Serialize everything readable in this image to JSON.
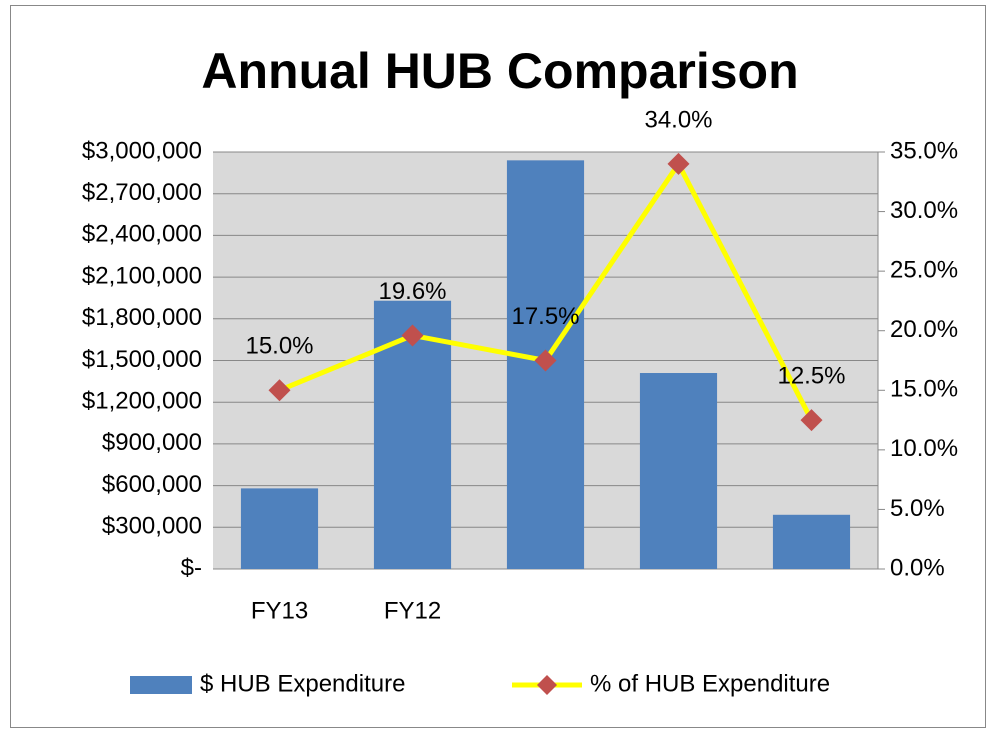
{
  "chart_data": {
    "type": "bar",
    "title": "Annual HUB  Comparison",
    "categories": [
      "FY13",
      "FY12",
      null,
      null,
      null
    ],
    "series": [
      {
        "name": "$ HUB Expenditure",
        "type": "bar",
        "color": "#4f81bd",
        "values": [
          580000,
          1930000,
          2940000,
          1410000,
          390000
        ]
      },
      {
        "name": "% of HUB Expenditure",
        "type": "line",
        "axis": "y2",
        "color": "#ffff00",
        "marker_color": "#c0504d",
        "values": [
          15.0,
          19.6,
          17.5,
          34.0,
          12.5
        ],
        "value_labels": [
          "15.0%",
          "19.6%",
          "17.5%",
          "34.0%",
          "12.5%"
        ]
      }
    ],
    "ylim": [
      0,
      3000000
    ],
    "yticks": [
      {
        "value": 0,
        "label": "$-"
      },
      {
        "value": 300000,
        "label": "$300,000"
      },
      {
        "value": 600000,
        "label": "$600,000"
      },
      {
        "value": 900000,
        "label": "$900,000"
      },
      {
        "value": 1200000,
        "label": "$1,200,000"
      },
      {
        "value": 1500000,
        "label": "$1,500,000"
      },
      {
        "value": 1800000,
        "label": "$1,800,000"
      },
      {
        "value": 2100000,
        "label": "$2,100,000"
      },
      {
        "value": 2400000,
        "label": "$2,400,000"
      },
      {
        "value": 2700000,
        "label": "$2,700,000"
      },
      {
        "value": 3000000,
        "label": "$3,000,000"
      }
    ],
    "y2lim": [
      0,
      35
    ],
    "y2ticks": [
      {
        "value": 0,
        "label": "0.0%"
      },
      {
        "value": 5,
        "label": "5.0%"
      },
      {
        "value": 10,
        "label": "10.0%"
      },
      {
        "value": 15,
        "label": "15.0%"
      },
      {
        "value": 20,
        "label": "20.0%"
      },
      {
        "value": 25,
        "label": "25.0%"
      },
      {
        "value": 30,
        "label": "30.0%"
      },
      {
        "value": 35,
        "label": "35.0%"
      }
    ],
    "grid": true,
    "legend": "bottom"
  }
}
